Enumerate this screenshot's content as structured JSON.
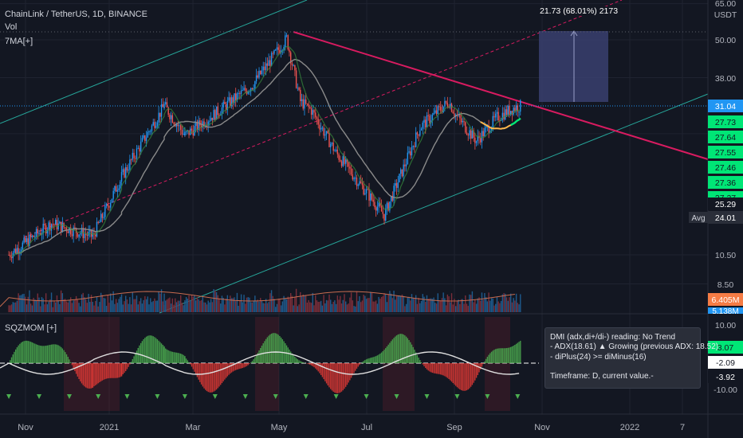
{
  "header": {
    "symbol_line": "ChainLink / TetherUS, 1D, BINANCE",
    "vol_label": "Vol",
    "ma_label": "7MA[+]",
    "sqz_label": "SQZMOM [+]",
    "currency": "USDT"
  },
  "measure_label": "21.73 (68.01%) 2173",
  "info_box": {
    "line1": "DMI (adx,di+/di-) reading: No Trend",
    "line2": "- ADX(18.61) ▲ Growing (previous ADX: 18.52)",
    "line3": "- diPlus(24) >= diMinus(16)",
    "line4": "Timeframe: D, current value.-"
  },
  "price_axis": {
    "ticks": [
      "65.00",
      "50.00",
      "38.00",
      "25.29",
      "24.01",
      "10.50",
      "8.50"
    ],
    "current_price": "31.04",
    "ma_values": [
      "27.73",
      "27.64",
      "27.55",
      "27.46",
      "27.36",
      "27.27"
    ],
    "avg_label": "Avg",
    "volume_value": "6.405M",
    "volume_partial": "5.138M"
  },
  "sqz_axis": {
    "ticks": [
      "10.00",
      "-10.00"
    ],
    "values": [
      "3.07",
      "-2.09",
      "-3.92"
    ]
  },
  "time_axis": [
    "Nov",
    "2021",
    "Mar",
    "May",
    "Jul",
    "Sep",
    "Nov",
    "2022",
    "7"
  ],
  "colors": {
    "background": "#131722",
    "up_candle": "#2196f3",
    "down_candle": "#ef5350",
    "channel": "#26a69a",
    "trendline": "#d81b60",
    "measure_box": "#3a3f6e",
    "ma_slow": "#8a8a8a",
    "ma_fast": "#4caf50",
    "ma_current": "#00e676"
  },
  "chart_data": {
    "type": "candlestick",
    "symbol": "LINKUSDT",
    "timeframe": "1D",
    "scale": "log",
    "ylim": [
      6.405,
      65
    ],
    "x_labels": [
      "Nov",
      "2021",
      "Mar",
      "May",
      "Jul",
      "Sep",
      "Nov",
      "2022",
      "7"
    ],
    "price_anchors": [
      {
        "date": "2020-10-20",
        "price": 10.5
      },
      {
        "date": "2020-11-20",
        "price": 13.2
      },
      {
        "date": "2020-12-20",
        "price": 12.0
      },
      {
        "date": "2021-01-10",
        "price": 18.5
      },
      {
        "date": "2021-02-10",
        "price": 31.0
      },
      {
        "date": "2021-02-25",
        "price": 25.0
      },
      {
        "date": "2021-03-20",
        "price": 29.5
      },
      {
        "date": "2021-04-15",
        "price": 36.0
      },
      {
        "date": "2021-05-10",
        "price": 50.5
      },
      {
        "date": "2021-05-20",
        "price": 32.0
      },
      {
        "date": "2021-05-28",
        "price": 30.0
      },
      {
        "date": "2021-06-15",
        "price": 22.0
      },
      {
        "date": "2021-07-20",
        "price": 14.0
      },
      {
        "date": "2021-08-15",
        "price": 26.5
      },
      {
        "date": "2021-09-05",
        "price": 32.0
      },
      {
        "date": "2021-09-10",
        "price": 29.0
      },
      {
        "date": "2021-09-25",
        "price": 24.0
      },
      {
        "date": "2021-10-10",
        "price": 28.5
      },
      {
        "date": "2021-10-22",
        "price": 30.5
      },
      {
        "date": "2021-10-28",
        "price": 31.04
      }
    ],
    "current_price": 31.04,
    "average_price": 24.01,
    "measure": {
      "change": 21.73,
      "percent": 68.01,
      "ticks": 2173
    },
    "volume_last": "6.405M",
    "sqzmom_last": 3.07,
    "levels": [
      -2.09,
      -3.92
    ]
  }
}
